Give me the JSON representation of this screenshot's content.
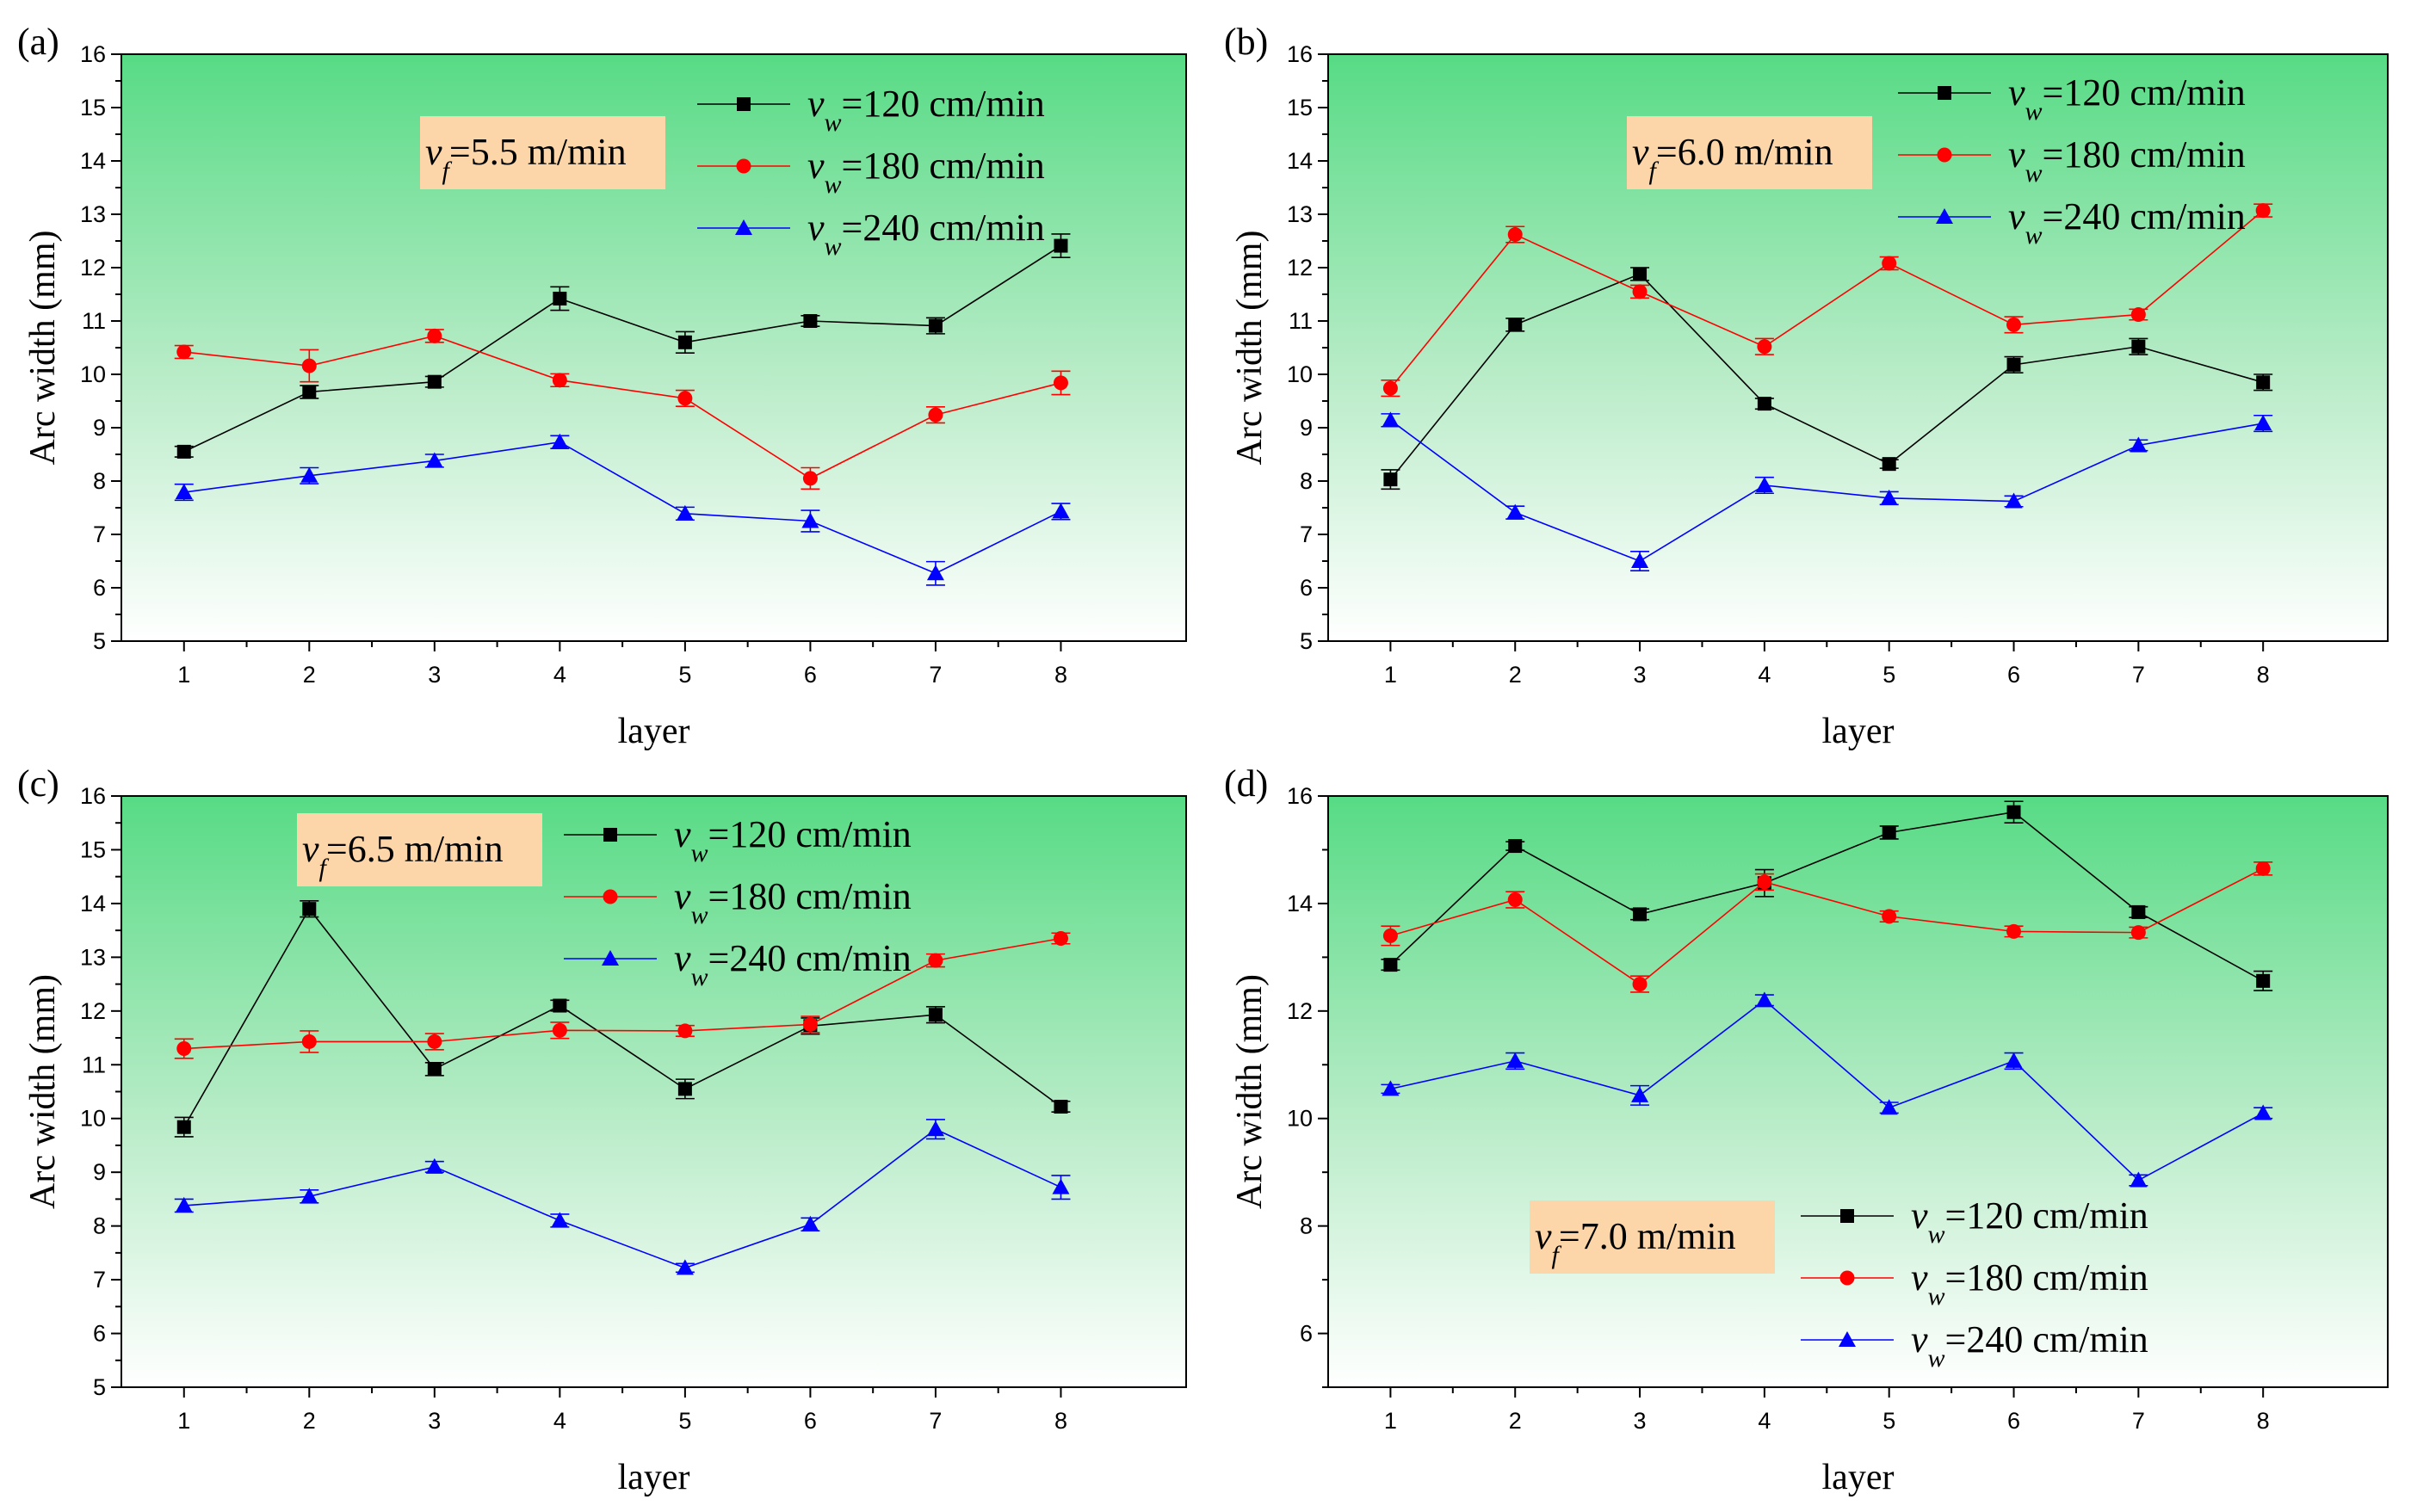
{
  "chart_data": [
    {
      "panel": "(a)",
      "type": "line",
      "xlabel": "layer",
      "ylabel": "Arc width (mm)",
      "categories": [
        1,
        2,
        3,
        4,
        5,
        6,
        7,
        8
      ],
      "ylim": [
        5,
        16
      ],
      "yticks": [
        5,
        6,
        7,
        8,
        9,
        10,
        11,
        12,
        13,
        14,
        15,
        16
      ],
      "annotation": {
        "var": "v",
        "sub": "f",
        "rest": "=5.5 m/min"
      },
      "legend_position": "top-right",
      "series": [
        {
          "name": "120 cm/min",
          "label_var": "v",
          "label_sub": "w",
          "label_rest": "=120 cm/min",
          "color": "#000000",
          "marker": "square",
          "values": [
            8.55,
            9.67,
            9.86,
            11.42,
            10.6,
            11.0,
            10.91,
            12.41
          ],
          "errors": [
            0.1,
            0.12,
            0.1,
            0.22,
            0.2,
            0.1,
            0.15,
            0.22
          ]
        },
        {
          "name": "180 cm/min",
          "label_var": "v",
          "label_sub": "w",
          "label_rest": "=180 cm/min",
          "color": "#ff0000",
          "marker": "circle",
          "values": [
            10.42,
            10.16,
            10.72,
            9.89,
            9.55,
            8.05,
            9.24,
            9.84
          ],
          "errors": [
            0.12,
            0.3,
            0.12,
            0.12,
            0.15,
            0.2,
            0.15,
            0.22
          ]
        },
        {
          "name": "240 cm/min",
          "label_var": "v",
          "label_sub": "w",
          "label_rest": "=240 cm/min",
          "color": "#0000ff",
          "marker": "triangle",
          "values": [
            7.79,
            8.1,
            8.38,
            8.73,
            7.39,
            7.25,
            6.27,
            7.43
          ],
          "errors": [
            0.15,
            0.15,
            0.12,
            0.12,
            0.12,
            0.2,
            0.22,
            0.15
          ]
        }
      ]
    },
    {
      "panel": "(b)",
      "type": "line",
      "xlabel": "layer",
      "ylabel": "Arc width (mm)",
      "categories": [
        1,
        2,
        3,
        4,
        5,
        6,
        7,
        8
      ],
      "ylim": [
        5,
        16
      ],
      "yticks": [
        5,
        6,
        7,
        8,
        9,
        10,
        11,
        12,
        13,
        14,
        15,
        16
      ],
      "annotation": {
        "var": "v",
        "sub": "f",
        "rest": "=6.0 m/min"
      },
      "legend_position": "top-right",
      "series": [
        {
          "name": "120 cm/min",
          "label_var": "v",
          "label_sub": "w",
          "label_rest": "=120 cm/min",
          "color": "#000000",
          "marker": "square",
          "values": [
            8.03,
            10.93,
            11.88,
            9.45,
            8.32,
            10.18,
            10.52,
            9.85
          ],
          "errors": [
            0.18,
            0.12,
            0.12,
            0.1,
            0.08,
            0.15,
            0.15,
            0.15
          ]
        },
        {
          "name": "180 cm/min",
          "label_var": "v",
          "label_sub": "w",
          "label_rest": "=180 cm/min",
          "color": "#ff0000",
          "marker": "circle",
          "values": [
            9.74,
            12.62,
            11.55,
            10.52,
            12.08,
            10.93,
            11.12,
            13.07
          ],
          "errors": [
            0.15,
            0.15,
            0.12,
            0.15,
            0.12,
            0.15,
            0.1,
            0.12
          ]
        },
        {
          "name": "240 cm/min",
          "label_var": "v",
          "label_sub": "w",
          "label_rest": "=240 cm/min",
          "color": "#0000ff",
          "marker": "triangle",
          "values": [
            9.14,
            7.41,
            6.5,
            7.92,
            7.68,
            7.62,
            8.67,
            9.08
          ],
          "errors": [
            0.12,
            0.12,
            0.18,
            0.15,
            0.12,
            0.1,
            0.1,
            0.15
          ]
        }
      ]
    },
    {
      "panel": "(c)",
      "type": "line",
      "xlabel": "layer",
      "ylabel": "Arc width (mm)",
      "categories": [
        1,
        2,
        3,
        4,
        5,
        6,
        7,
        8
      ],
      "ylim": [
        5,
        16
      ],
      "yticks": [
        5,
        6,
        7,
        8,
        9,
        10,
        11,
        12,
        13,
        14,
        15,
        16
      ],
      "annotation": {
        "var": "v",
        "sub": "f",
        "rest": "=6.5 m/min"
      },
      "legend_position": "top-right",
      "series": [
        {
          "name": "120 cm/min",
          "label_var": "v",
          "label_sub": "w",
          "label_rest": "=120 cm/min",
          "color": "#000000",
          "marker": "square",
          "values": [
            9.84,
            13.9,
            10.92,
            12.1,
            10.55,
            11.72,
            11.93,
            10.22
          ],
          "errors": [
            0.18,
            0.15,
            0.12,
            0.1,
            0.18,
            0.15,
            0.15,
            0.1
          ]
        },
        {
          "name": "180 cm/min",
          "label_var": "v",
          "label_sub": "w",
          "label_rest": "=180 cm/min",
          "color": "#ff0000",
          "marker": "circle",
          "values": [
            11.3,
            11.43,
            11.43,
            11.64,
            11.63,
            11.75,
            12.94,
            13.35
          ],
          "errors": [
            0.18,
            0.2,
            0.15,
            0.15,
            0.1,
            0.15,
            0.12,
            0.1
          ]
        },
        {
          "name": "240 cm/min",
          "label_var": "v",
          "label_sub": "w",
          "label_rest": "=240 cm/min",
          "color": "#0000ff",
          "marker": "triangle",
          "values": [
            8.38,
            8.55,
            9.1,
            8.1,
            7.22,
            8.03,
            9.8,
            8.72
          ],
          "errors": [
            0.12,
            0.12,
            0.1,
            0.12,
            0.08,
            0.12,
            0.18,
            0.22
          ]
        }
      ]
    },
    {
      "panel": "(d)",
      "type": "line",
      "xlabel": "layer",
      "ylabel": "Arc width (mm)",
      "categories": [
        1,
        2,
        3,
        4,
        5,
        6,
        7,
        8
      ],
      "ylim": [
        5,
        16
      ],
      "yticks": [
        6,
        8,
        10,
        12,
        14,
        16
      ],
      "annotation": {
        "var": "v",
        "sub": "f",
        "rest": "=7.0 m/min"
      },
      "legend_position": "bottom-right",
      "series": [
        {
          "name": "120 cm/min",
          "label_var": "v",
          "label_sub": "w",
          "label_rest": "=120 cm/min",
          "color": "#000000",
          "marker": "square",
          "values": [
            12.86,
            15.07,
            13.8,
            14.38,
            15.32,
            15.7,
            13.84,
            12.56
          ],
          "errors": [
            0.1,
            0.08,
            0.1,
            0.25,
            0.12,
            0.2,
            0.1,
            0.18
          ]
        },
        {
          "name": "180 cm/min",
          "label_var": "v",
          "label_sub": "w",
          "label_rest": "=180 cm/min",
          "color": "#ff0000",
          "marker": "circle",
          "values": [
            13.4,
            14.07,
            12.5,
            14.4,
            13.76,
            13.48,
            13.46,
            14.65
          ],
          "errors": [
            0.18,
            0.15,
            0.15,
            0.15,
            0.1,
            0.1,
            0.1,
            0.12
          ]
        },
        {
          "name": "240 cm/min",
          "label_var": "v",
          "label_sub": "w",
          "label_rest": "=240 cm/min",
          "color": "#0000ff",
          "marker": "triangle",
          "values": [
            10.55,
            11.07,
            10.43,
            12.2,
            10.2,
            11.07,
            8.85,
            10.1
          ],
          "errors": [
            0.08,
            0.15,
            0.18,
            0.1,
            0.1,
            0.15,
            0.1,
            0.1
          ]
        }
      ]
    }
  ]
}
